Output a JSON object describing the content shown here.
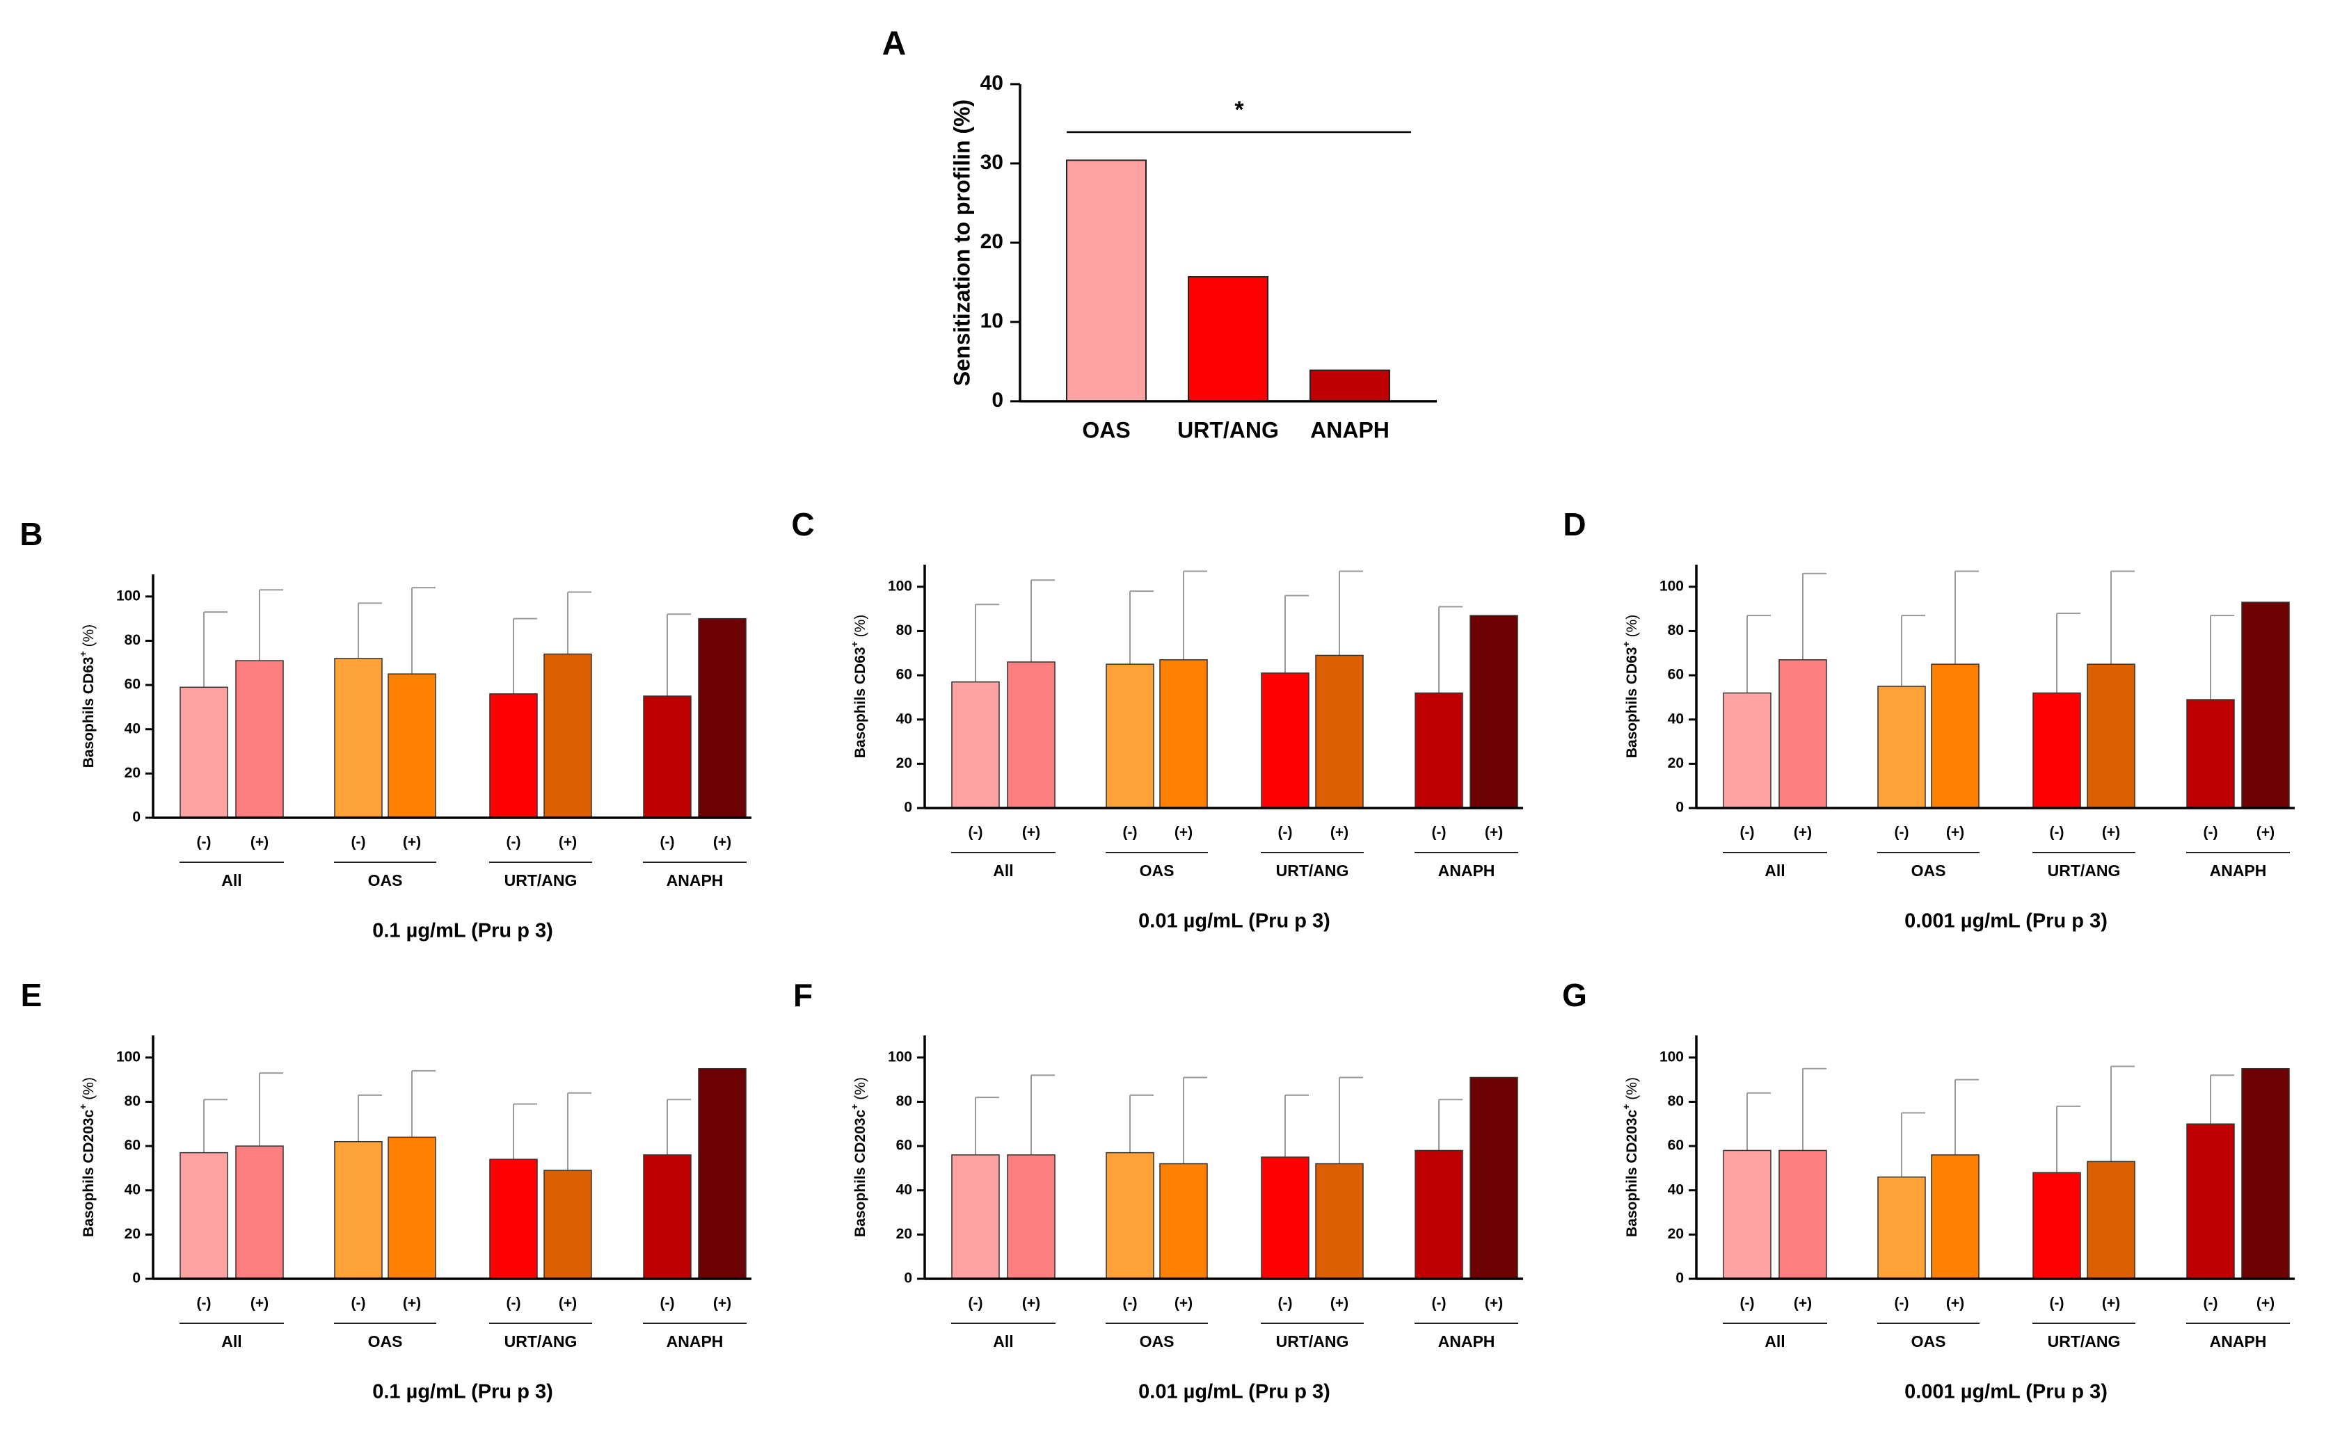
{
  "colors": [
    "#FDA4A3",
    "#FE7F80",
    "#FFA23A",
    "#FF8002",
    "#FE0002",
    "#DD6000",
    "#BE0002",
    "#6D0002"
  ],
  "panel_a": {
    "letter": "A",
    "significance": "*",
    "chart_data": {
      "type": "bar",
      "title": "",
      "xlabel": "",
      "ylabel": "Sensitization to profilin (%)",
      "categories": [
        "OAS",
        "URT/ANG",
        "ANAPH"
      ],
      "values": [
        30.4,
        15.7,
        3.9
      ],
      "ylim": [
        0,
        40
      ],
      "yticks": [
        0,
        10,
        20,
        30,
        40
      ],
      "annotations": [
        {
          "text": "*",
          "between": [
            "OAS",
            "ANAPH"
          ]
        }
      ]
    }
  },
  "panels": [
    {
      "letter": "B",
      "chart_data": {
        "type": "bar",
        "ylabel": "Basophils CD63+ (%)",
        "ylabel_main": "Basophils CD63",
        "ylabel_sup": "+",
        "ylabel_tail": " (%)",
        "xlabel": "0.1 µg/mL (Pru p 3)",
        "groups": [
          "All",
          "OAS",
          "URT/ANG",
          "ANAPH"
        ],
        "bar_labels": [
          "(-)",
          "(+)",
          "(-)",
          "(+)",
          "(-)",
          "(+)",
          "(-)",
          "(+)"
        ],
        "values": [
          59,
          71,
          72,
          65,
          56,
          74,
          55,
          90
        ],
        "errors_upper": [
          93,
          103,
          97,
          104,
          90,
          102,
          92,
          90
        ],
        "ylim": [
          0,
          110
        ],
        "yticks": [
          0,
          20,
          40,
          60,
          80,
          100
        ]
      }
    },
    {
      "letter": "C",
      "chart_data": {
        "type": "bar",
        "ylabel": "Basophils CD63+ (%)",
        "ylabel_main": "Basophils CD63",
        "ylabel_sup": "+",
        "ylabel_tail": " (%)",
        "xlabel": "0.01 µg/mL (Pru p 3)",
        "groups": [
          "All",
          "OAS",
          "URT/ANG",
          "ANAPH"
        ],
        "bar_labels": [
          "(-)",
          "(+)",
          "(-)",
          "(+)",
          "(-)",
          "(+)",
          "(-)",
          "(+)"
        ],
        "values": [
          57,
          66,
          65,
          67,
          61,
          69,
          52,
          87
        ],
        "errors_upper": [
          92,
          103,
          98,
          107,
          96,
          107,
          91,
          87
        ],
        "ylim": [
          0,
          110
        ],
        "yticks": [
          0,
          20,
          40,
          60,
          80,
          100
        ]
      }
    },
    {
      "letter": "D",
      "chart_data": {
        "type": "bar",
        "ylabel": "Basophils CD63+ (%)",
        "ylabel_main": "Basophils CD63",
        "ylabel_sup": "+",
        "ylabel_tail": " (%)",
        "xlabel": "0.001 µg/mL (Pru p 3)",
        "groups": [
          "All",
          "OAS",
          "URT/ANG",
          "ANAPH"
        ],
        "bar_labels": [
          "(-)",
          "(+)",
          "(-)",
          "(+)",
          "(-)",
          "(+)",
          "(-)",
          "(+)"
        ],
        "values": [
          52,
          67,
          55,
          65,
          52,
          65,
          49,
          93
        ],
        "errors_upper": [
          87,
          106,
          87,
          107,
          88,
          107,
          87,
          93
        ],
        "ylim": [
          0,
          110
        ],
        "yticks": [
          0,
          20,
          40,
          60,
          80,
          100
        ]
      }
    },
    {
      "letter": "E",
      "chart_data": {
        "type": "bar",
        "ylabel": "Basophils CD203c+ (%)",
        "ylabel_main": "Basophils CD203c",
        "ylabel_sup": "+",
        "ylabel_tail": " (%)",
        "xlabel": "0.1 µg/mL (Pru p 3)",
        "groups": [
          "All",
          "OAS",
          "URT/ANG",
          "ANAPH"
        ],
        "bar_labels": [
          "(-)",
          "(+)",
          "(-)",
          "(+)",
          "(-)",
          "(+)",
          "(-)",
          "(+)"
        ],
        "values": [
          57,
          60,
          62,
          64,
          54,
          49,
          56,
          95
        ],
        "errors_upper": [
          81,
          93,
          83,
          94,
          79,
          84,
          81,
          95
        ],
        "ylim": [
          0,
          110
        ],
        "yticks": [
          0,
          20,
          40,
          60,
          80,
          100
        ]
      }
    },
    {
      "letter": "F",
      "chart_data": {
        "type": "bar",
        "ylabel": "Basophils CD203c+ (%)",
        "ylabel_main": "Basophils CD203c",
        "ylabel_sup": "+",
        "ylabel_tail": " (%)",
        "xlabel": "0.01 µg/mL (Pru p 3)",
        "groups": [
          "All",
          "OAS",
          "URT/ANG",
          "ANAPH"
        ],
        "bar_labels": [
          "(-)",
          "(+)",
          "(-)",
          "(+)",
          "(-)",
          "(+)",
          "(-)",
          "(+)"
        ],
        "values": [
          56,
          56,
          57,
          52,
          55,
          52,
          58,
          91
        ],
        "errors_upper": [
          82,
          92,
          83,
          91,
          83,
          91,
          81,
          91
        ],
        "ylim": [
          0,
          110
        ],
        "yticks": [
          0,
          20,
          40,
          60,
          80,
          100
        ]
      }
    },
    {
      "letter": "G",
      "chart_data": {
        "type": "bar",
        "ylabel": "Basophils CD203c+ (%)",
        "ylabel_main": "Basophils CD203c",
        "ylabel_sup": "+",
        "ylabel_tail": " (%)",
        "xlabel": "0.001 µg/mL (Pru p 3)",
        "groups": [
          "All",
          "OAS",
          "URT/ANG",
          "ANAPH"
        ],
        "bar_labels": [
          "(-)",
          "(+)",
          "(-)",
          "(+)",
          "(-)",
          "(+)",
          "(-)",
          "(+)"
        ],
        "values": [
          58,
          58,
          46,
          56,
          48,
          53,
          70,
          95
        ],
        "errors_upper": [
          84,
          95,
          75,
          90,
          78,
          96,
          92,
          95
        ],
        "ylim": [
          0,
          110
        ],
        "yticks": [
          0,
          20,
          40,
          60,
          80,
          100
        ]
      }
    }
  ]
}
